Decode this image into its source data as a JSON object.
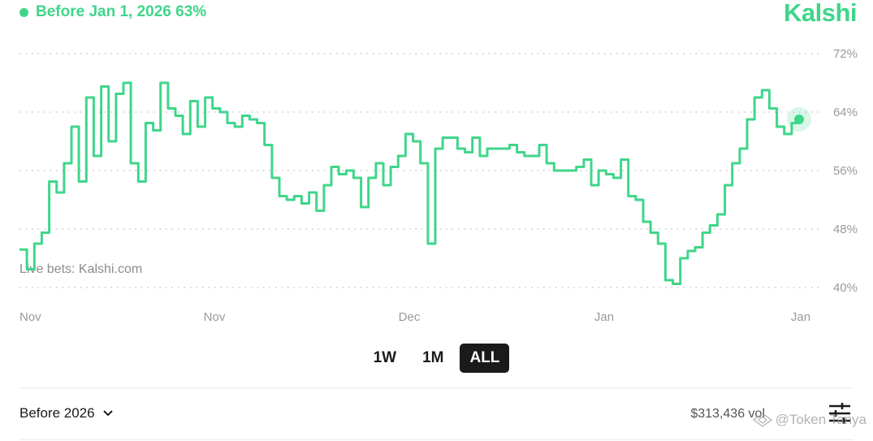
{
  "header": {
    "legend_label": "Before Jan 1, 2026 63%",
    "brand": "Kalshi",
    "accent_color": "#3fd68a"
  },
  "chart_data": {
    "type": "line",
    "title": "",
    "xlabel": "",
    "ylabel": "",
    "ylim": [
      40,
      72
    ],
    "y_ticks": [
      "72%",
      "64%",
      "56%",
      "48%",
      "40%"
    ],
    "x_ticks": [
      "Nov",
      "Nov",
      "Dec",
      "Jan",
      "Jan"
    ],
    "grid": "horizontal dotted",
    "watermark": "Live bets: Kalshi.com",
    "series": [
      {
        "color": "#3fd68a",
        "end_marker": true,
        "values": [
          45.2,
          42.5,
          46.0,
          47.5,
          54.5,
          53.0,
          57.0,
          62.0,
          54.5,
          66.0,
          58.0,
          67.5,
          60.0,
          66.5,
          68.0,
          57.0,
          54.5,
          62.5,
          61.5,
          68.0,
          64.5,
          63.5,
          61.0,
          65.5,
          62.0,
          66.0,
          64.5,
          64.0,
          62.5,
          62.0,
          63.5,
          63.0,
          62.5,
          59.5,
          55.0,
          52.5,
          52.0,
          52.5,
          51.5,
          53.0,
          50.5,
          54.0,
          56.5,
          55.5,
          56.0,
          55.0,
          51.0,
          55.0,
          57.0,
          54.0,
          56.5,
          58.0,
          61.0,
          60.0,
          57.0,
          46.0,
          59.0,
          60.5,
          60.5,
          59.0,
          58.5,
          60.5,
          58.0,
          59.0,
          59.0,
          59.0,
          59.5,
          58.5,
          58.0,
          58.0,
          59.5,
          57.0,
          56.0,
          56.0,
          56.0,
          56.5,
          57.5,
          54.0,
          56.0,
          55.5,
          55.0,
          57.5,
          52.5,
          52.0,
          49.0,
          47.5,
          46.0,
          41.0,
          40.5,
          44.0,
          45.0,
          45.5,
          47.5,
          48.5,
          50.0,
          54.0,
          57.0,
          59.0,
          63.0,
          66.0,
          67.0,
          64.5,
          62.0,
          61.0,
          62.5,
          63.0
        ]
      }
    ],
    "last_value": 63
  },
  "time_ranges": {
    "selected": "ALL",
    "options": [
      "1W",
      "1M",
      "ALL"
    ]
  },
  "footer": {
    "market_label": "Before 2026",
    "volume": "$313,436 vol",
    "watermark": "@Token Tanya"
  }
}
